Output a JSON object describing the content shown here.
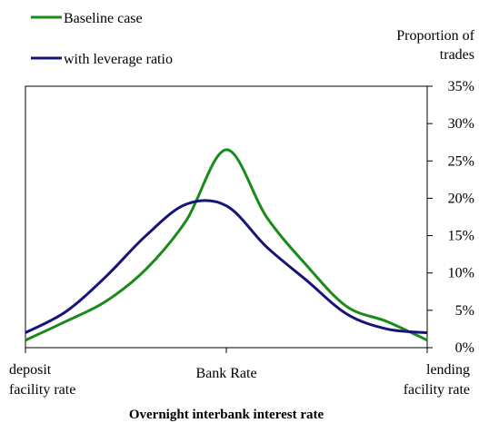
{
  "chart_data": {
    "type": "line",
    "title": "",
    "xlabel": "Overnight interbank interest rate",
    "ylabel": "Proportion of trades",
    "ylim": [
      0,
      35
    ],
    "y_ticks": [
      "0%",
      "5%",
      "10%",
      "15%",
      "20%",
      "25%",
      "30%",
      "35%"
    ],
    "x_tick_labels": {
      "left": [
        "deposit",
        "facility rate"
      ],
      "center": "Bank Rate",
      "right": [
        "lending",
        "facility rate"
      ]
    },
    "legend_position": "top-left",
    "grid": false,
    "x": [
      -100,
      -80,
      -60,
      -40,
      -20,
      0,
      20,
      40,
      60,
      80,
      100
    ],
    "series": [
      {
        "name": "Baseline case",
        "color": "#1a8a1a",
        "values": [
          1.0,
          3.5,
          6.2,
          10.5,
          17.0,
          26.5,
          17.5,
          11.0,
          5.5,
          3.5,
          1.0
        ]
      },
      {
        "name": "with leverage ratio",
        "color": "#14147a",
        "values": [
          2.0,
          4.8,
          9.5,
          15.0,
          19.2,
          19.0,
          13.5,
          9.0,
          4.5,
          2.5,
          2.0
        ]
      }
    ]
  }
}
